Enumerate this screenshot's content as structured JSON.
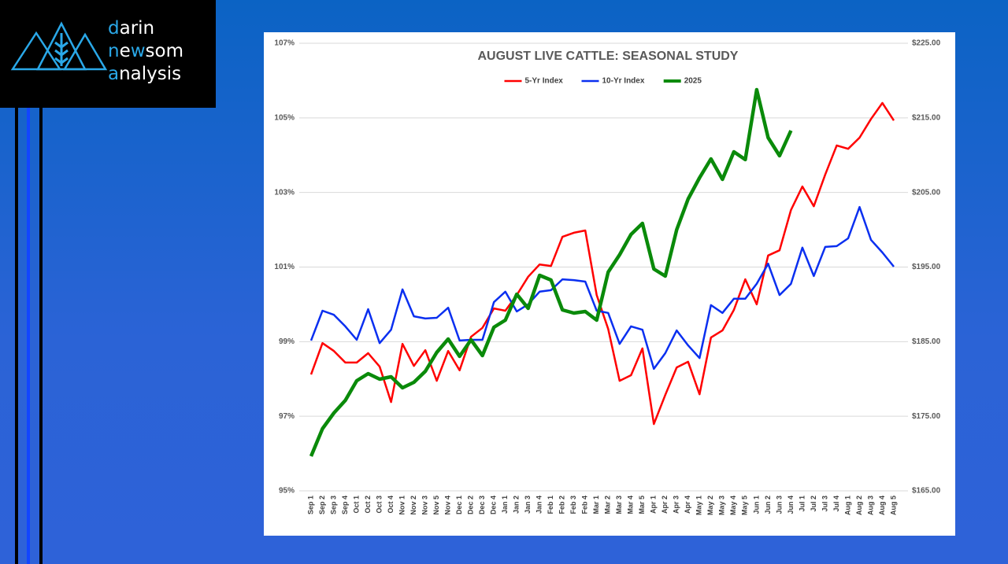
{
  "logo": {
    "lines": [
      [
        "d",
        "arin"
      ],
      [
        "n",
        "e",
        "w",
        "som"
      ],
      [
        "a",
        "nalysis"
      ]
    ]
  },
  "chart_data": {
    "type": "line",
    "title": "AUGUST LIVE CATTLE: SEASONAL STUDY",
    "categories": [
      "Sep 1",
      "Sep 2",
      "Sep 3",
      "Sep 4",
      "Oct 1",
      "Oct 2",
      "Oct 3",
      "Oct 4",
      "Nov 1",
      "Nov 2",
      "Nov 3",
      "Nov 5",
      "Nov 4",
      "Dec 1",
      "Dec 2",
      "Dec 3",
      "Dec 4",
      "Jan 1",
      "Jan 2",
      "Jan 3",
      "Jan 4",
      "Feb 1",
      "Feb 2",
      "Feb 3",
      "Feb 4",
      "Mar 1",
      "Mar 2",
      "Mar 3",
      "Mar 4",
      "Mar 5",
      "Apr 1",
      "Apr 2",
      "Apr 3",
      "Apr 4",
      "May 1",
      "May 2",
      "May 3",
      "May 4",
      "May 5",
      "Jun 1",
      "Jun 2",
      "Jun 3",
      "Jun 4",
      "Jul 1",
      "Jul 2",
      "Jul 3",
      "Jul 4",
      "Aug 1",
      "Aug 2",
      "Aug 3",
      "Aug 4",
      "Aug 5"
    ],
    "series": [
      {
        "name": "5-Yr Index",
        "color": "#ff0000",
        "values": [
          98.12,
          98.96,
          98.75,
          98.44,
          98.44,
          98.69,
          98.33,
          97.38,
          98.94,
          98.35,
          98.77,
          97.95,
          98.75,
          98.23,
          99.13,
          99.37,
          99.89,
          99.83,
          100.25,
          100.74,
          101.07,
          101.03,
          101.81,
          101.92,
          101.98,
          100.25,
          99.34,
          97.95,
          98.1,
          98.82,
          96.79,
          97.57,
          98.31,
          98.46,
          97.59,
          99.11,
          99.3,
          99.85,
          100.67,
          100.0,
          101.31,
          101.45,
          102.53,
          103.16,
          102.63,
          103.48,
          104.26,
          104.17,
          104.47,
          104.97,
          105.4,
          104.93
        ]
      },
      {
        "name": "10-Yr Index",
        "color": "#0a2ff0",
        "values": [
          99.03,
          99.83,
          99.72,
          99.41,
          99.05,
          99.87,
          98.96,
          99.32,
          100.4,
          99.68,
          99.62,
          99.64,
          99.91,
          99.03,
          99.05,
          99.05,
          100.06,
          100.34,
          99.81,
          100.0,
          100.34,
          100.38,
          100.67,
          100.65,
          100.61,
          99.83,
          99.77,
          98.94,
          99.41,
          99.32,
          98.27,
          98.69,
          99.3,
          98.9,
          98.56,
          99.98,
          99.77,
          100.15,
          100.15,
          100.55,
          101.09,
          100.25,
          100.55,
          101.52,
          100.76,
          101.54,
          101.56,
          101.77,
          102.61,
          101.73,
          101.39,
          101.01
        ]
      },
      {
        "name": "2025",
        "color": "#0a8a0a",
        "axis": "y2",
        "values": [
          169.64,
          173.33,
          175.44,
          177.13,
          179.76,
          180.71,
          179.97,
          180.29,
          178.81,
          179.55,
          181.03,
          183.56,
          185.35,
          183.03,
          185.25,
          183.14,
          186.93,
          187.88,
          191.36,
          189.46,
          193.89,
          193.26,
          189.25,
          188.83,
          189.04,
          187.88,
          194.32,
          196.64,
          199.38,
          200.85,
          194.74,
          193.79,
          200.01,
          204.12,
          206.97,
          209.5,
          206.76,
          210.45,
          209.4,
          218.78,
          212.35,
          209.92,
          213.3,
          null,
          null,
          null,
          null,
          null,
          null,
          null,
          null,
          null
        ]
      }
    ],
    "ylim": [
      95,
      107
    ],
    "yticks": [
      {
        "value": 95,
        "label": "95%"
      },
      {
        "value": 97,
        "label": "97%"
      },
      {
        "value": 99,
        "label": "99%"
      },
      {
        "value": 101,
        "label": "101%"
      },
      {
        "value": 103,
        "label": "103%"
      },
      {
        "value": 105,
        "label": "105%"
      },
      {
        "value": 107,
        "label": "107%"
      }
    ],
    "y2lim": [
      165,
      225
    ],
    "y2ticks": [
      {
        "value": 165,
        "label": "$165.00"
      },
      {
        "value": 175,
        "label": "$175.00"
      },
      {
        "value": 185,
        "label": "$185.00"
      },
      {
        "value": 195,
        "label": "$195.00"
      },
      {
        "value": 205,
        "label": "$205.00"
      },
      {
        "value": 215,
        "label": "$215.00"
      },
      {
        "value": 225,
        "label": "$225.00"
      }
    ],
    "grid": true,
    "legend": "top"
  }
}
